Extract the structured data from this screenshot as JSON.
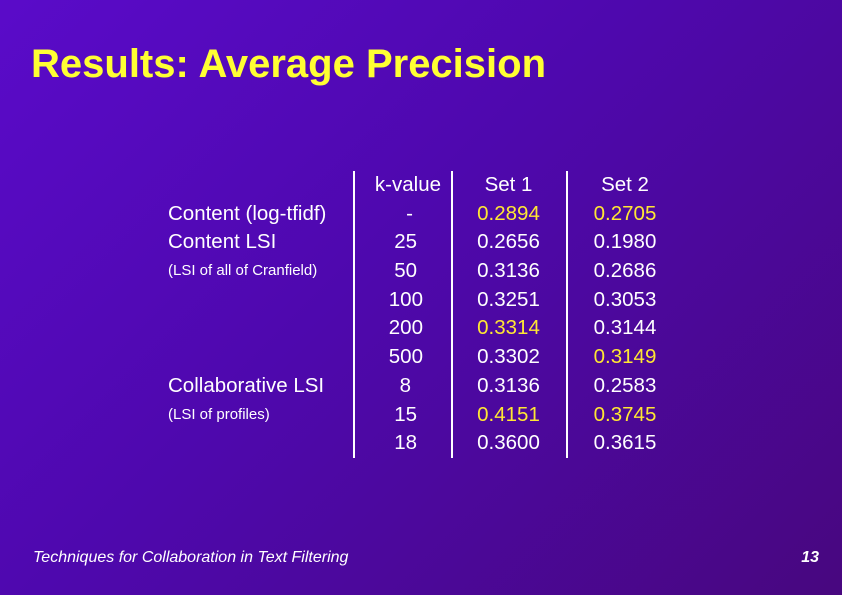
{
  "title": "Results: Average Precision",
  "table": {
    "headers": {
      "label": "",
      "k": "k-value",
      "set1": "Set 1",
      "set2": "Set 2"
    },
    "labels": [
      {
        "text": "",
        "small": false
      },
      {
        "text": "Content (log-tfidf)",
        "small": false
      },
      {
        "text": "Content LSI",
        "small": false
      },
      {
        "text": "(LSI of all of Cranfield)",
        "small": true
      },
      {
        "text": "",
        "small": false
      },
      {
        "text": "",
        "small": false
      },
      {
        "text": "",
        "small": false
      },
      {
        "text": "Collaborative LSI",
        "small": false
      },
      {
        "text": "(LSI of profiles)",
        "small": true
      },
      {
        "text": "",
        "small": false
      }
    ],
    "rows": [
      {
        "k": "-",
        "set1": "0.2894",
        "set1_hl": true,
        "set2": "0.2705",
        "set2_hl": true
      },
      {
        "k": "25",
        "set1": "0.2656",
        "set1_hl": false,
        "set2": "0.1980",
        "set2_hl": false
      },
      {
        "k": "50",
        "set1": "0.3136",
        "set1_hl": false,
        "set2": "0.2686",
        "set2_hl": false
      },
      {
        "k": "100",
        "set1": "0.3251",
        "set1_hl": false,
        "set2": "0.3053",
        "set2_hl": false
      },
      {
        "k": "200",
        "set1": "0.3314",
        "set1_hl": true,
        "set2": "0.3144",
        "set2_hl": false
      },
      {
        "k": "500",
        "set1": "0.3302",
        "set1_hl": false,
        "set2": "0.3149",
        "set2_hl": true
      },
      {
        "k": "8",
        "set1": "0.3136",
        "set1_hl": false,
        "set2": "0.2583",
        "set2_hl": false
      },
      {
        "k": "15",
        "set1": "0.4151",
        "set1_hl": true,
        "set2": "0.3745",
        "set2_hl": true
      },
      {
        "k": "18",
        "set1": "0.3600",
        "set1_hl": false,
        "set2": "0.3615",
        "set2_hl": false
      }
    ]
  },
  "footer": "Techniques for Collaboration in Text Filtering",
  "page_number": "13",
  "colors": {
    "title": "#ffff33",
    "highlight": "#ffe733",
    "text": "#ffffff",
    "background": "#5209b0"
  }
}
